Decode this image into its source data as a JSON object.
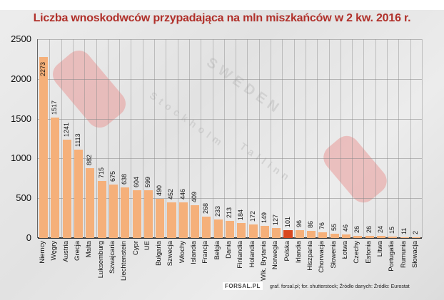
{
  "title": "Liczba wnoskodwców przypadająca na mln miszkańców w 2 kw. 2016 r.",
  "footer": {
    "logo": "FORSAL.PL",
    "credits": "graf. forsal.pl; for. shutterstock;  Źródło danych:  Źródło: Eurostat"
  },
  "colors": {
    "bar": "#f5b07a",
    "highlight": "#d9471f",
    "title": "#b0302a"
  },
  "chart_data": {
    "type": "bar",
    "title": "Liczba wnoskodwców przypadająca na mln miszkańców w 2 kw. 2016 r.",
    "xlabel": "",
    "ylabel": "",
    "ylim": [
      0,
      2500
    ],
    "yticks": [
      0,
      500,
      1000,
      1500,
      2000,
      2500
    ],
    "grid": true,
    "highlight": "Polska",
    "categories": [
      "Niemcy",
      "Węgry",
      "Austria",
      "Grecja",
      "Malta",
      "Luksemburg",
      "Szwajcaria",
      "Liechtenstein",
      "Cypr",
      "UE",
      "Bułgaria",
      "Szwecja",
      "Włochy",
      "Islandia",
      "Francja",
      "Belgia",
      "Dania",
      "Finlandia",
      "Holandia",
      "Wlk. Brytania",
      "Norwegia",
      "Polska",
      "Irlandia",
      "Hiszpania",
      "Chorwacja",
      "Słowenia",
      "Łotwa",
      "Czechy",
      "Estonia",
      "Litwa",
      "Portugalia",
      "Rumunia",
      "Słowacja"
    ],
    "values": [
      2273,
      1517,
      1241,
      1113,
      882,
      715,
      675,
      638,
      604,
      599,
      490,
      452,
      446,
      409,
      268,
      233,
      213,
      184,
      172,
      149,
      127,
      101,
      96,
      86,
      76,
      55,
      46,
      26,
      26,
      24,
      15,
      11,
      2
    ]
  }
}
